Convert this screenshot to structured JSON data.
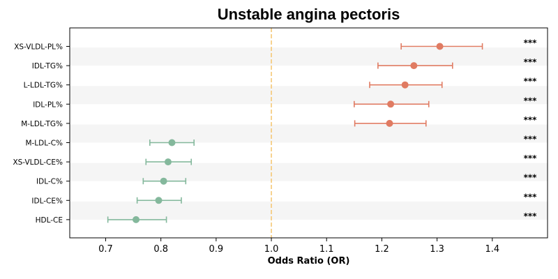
{
  "chart_data": {
    "type": "forest",
    "title": "Unstable angina pectoris",
    "xlabel": "Odds Ratio (OR)",
    "xlim": [
      0.635,
      1.5
    ],
    "xticks": [
      "0.7",
      "0.8",
      "0.9",
      "1.0",
      "1.1",
      "1.2",
      "1.3",
      "1.4"
    ],
    "reference_line": 1.0,
    "colors": {
      "risk": "#E07B62",
      "protective": "#84B89C",
      "reference": "#F5C46C",
      "band": "#F5F5F5"
    },
    "rows": [
      {
        "label": "XS-VLDL-PL%",
        "or": 1.305,
        "lower": 1.235,
        "upper": 1.382,
        "sig": "***",
        "group": "risk"
      },
      {
        "label": "IDL-TG%",
        "or": 1.258,
        "lower": 1.193,
        "upper": 1.328,
        "sig": "***",
        "group": "risk"
      },
      {
        "label": "L-LDL-TG%",
        "or": 1.242,
        "lower": 1.178,
        "upper": 1.309,
        "sig": "***",
        "group": "risk"
      },
      {
        "label": "IDL-PL%",
        "or": 1.216,
        "lower": 1.15,
        "upper": 1.285,
        "sig": "***",
        "group": "risk"
      },
      {
        "label": "M-LDL-TG%",
        "or": 1.214,
        "lower": 1.151,
        "upper": 1.28,
        "sig": "***",
        "group": "risk"
      },
      {
        "label": "M-LDL-C%",
        "or": 0.82,
        "lower": 0.78,
        "upper": 0.86,
        "sig": "***",
        "group": "protective"
      },
      {
        "label": "XS-VLDL-CE%",
        "or": 0.813,
        "lower": 0.773,
        "upper": 0.855,
        "sig": "***",
        "group": "protective"
      },
      {
        "label": "IDL-C%",
        "or": 0.805,
        "lower": 0.768,
        "upper": 0.845,
        "sig": "***",
        "group": "protective"
      },
      {
        "label": "IDL-CE%",
        "or": 0.796,
        "lower": 0.757,
        "upper": 0.837,
        "sig": "***",
        "group": "protective"
      },
      {
        "label": "HDL-CE",
        "or": 0.755,
        "lower": 0.704,
        "upper": 0.81,
        "sig": "***",
        "group": "protective"
      }
    ]
  }
}
